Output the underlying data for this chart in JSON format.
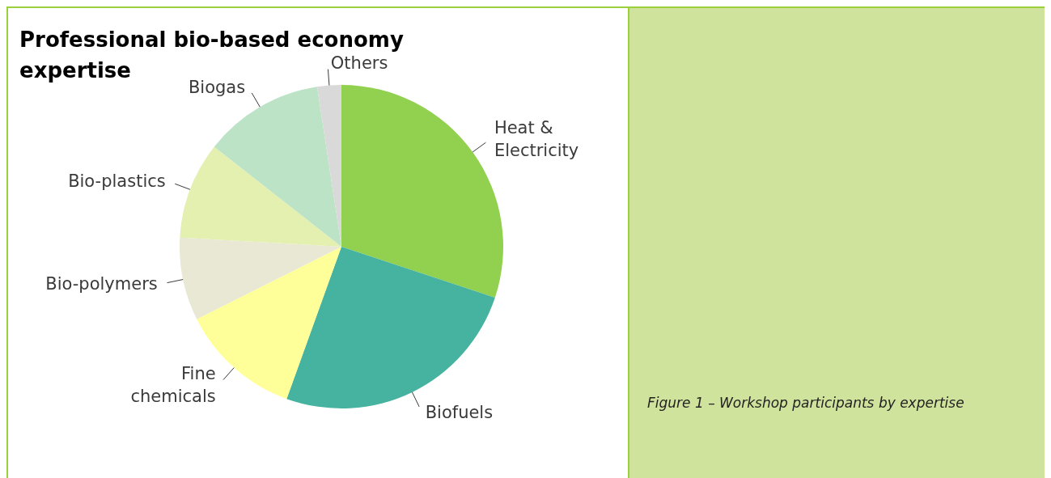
{
  "chart_data": {
    "type": "pie",
    "title": "Professional bio-based economy expertise",
    "categories": [
      "Heat & Electricity",
      "Biofuels",
      "Fine chemicals",
      "Bio-polymers",
      "Bio-plastics",
      "Biogas",
      "Others"
    ],
    "values": [
      30.1,
      25.4,
      12.1,
      8.3,
      9.7,
      12.0,
      2.4
    ],
    "colors": [
      "#92d050",
      "#45b3a0",
      "#ffff99",
      "#e9e8d4",
      "#e4f0b0",
      "#bde3c6",
      "#d9d9d9"
    ],
    "annotations": [
      "Figure 1 – Workshop participants by expertise"
    ]
  }
}
